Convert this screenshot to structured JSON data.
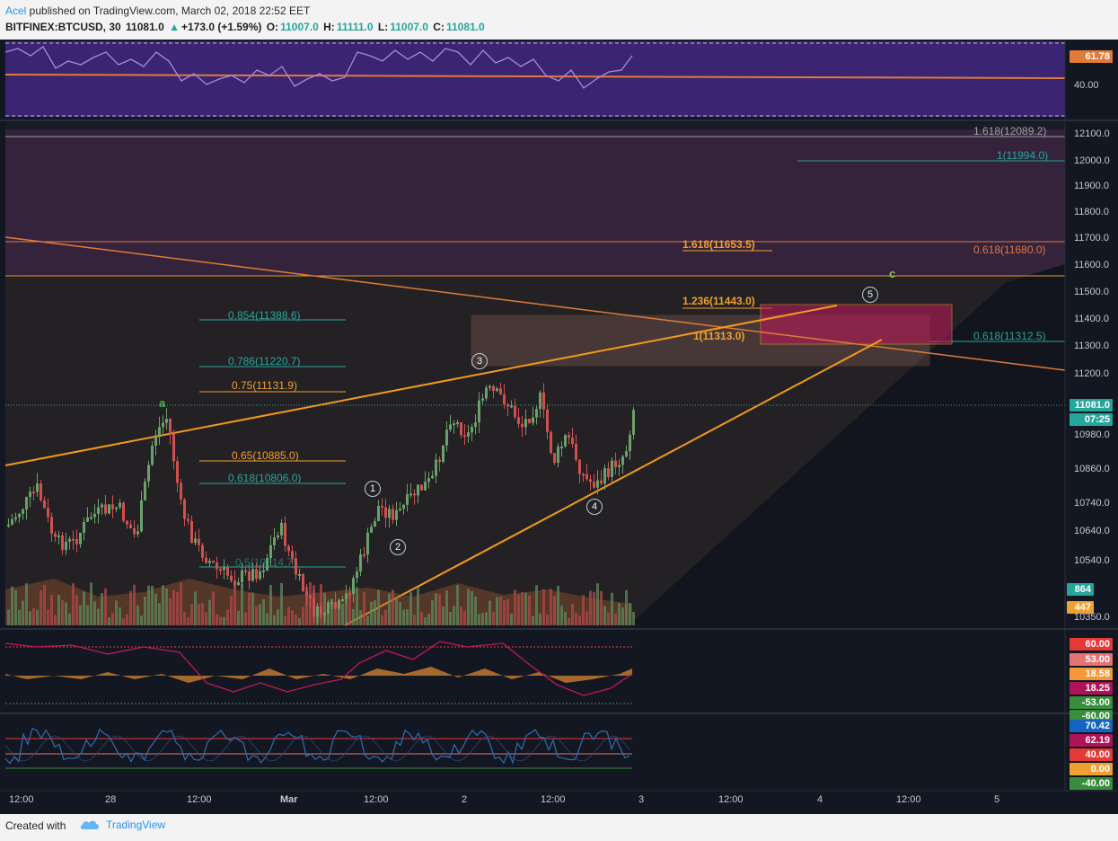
{
  "header": {
    "author": "Acel",
    "published_text": " published on TradingView.com, March 02, 2018 22:52 EET",
    "symbol": "BITFINEX:BTCUSD, 30",
    "last": "11081.0",
    "change": "+173.0 (+1.59%)",
    "open_label": "O:",
    "open": "11007.0",
    "high_label": "H:",
    "high": "11111.0",
    "low_label": "L:",
    "low": "11007.0",
    "close_label": "C:",
    "close": "11081.0"
  },
  "rsi_panel": {
    "value_tag": "61.78",
    "tick": "40.00",
    "colors": {
      "fill": "#4a2a86",
      "line": "#a88bd6",
      "mid_line": "#e07b39",
      "tag": "#e07b39"
    }
  },
  "price_axis": {
    "ticks": [
      "12100.0",
      "12000.0",
      "11900.0",
      "11800.0",
      "11700.0",
      "11600.0",
      "11500.0",
      "11400.0",
      "11300.0",
      "11200.0",
      "10980.0",
      "10860.0",
      "10740.0",
      "10640.0",
      "10540.0",
      "10350.0"
    ],
    "last_price_tag": "11081.0",
    "countdown_tag": "07:25",
    "volume_tag": "864",
    "volume_ma_tag": "447"
  },
  "fib_labels": [
    {
      "text": "1.618(12089.2)",
      "color": "#9aa0a6"
    },
    {
      "text": "1(11994.0)",
      "color": "#26a69a"
    },
    {
      "text": "1.618(11653.5)",
      "color": "#f0a030"
    },
    {
      "text": "0.618(11680.0)",
      "color": "#e0784a"
    },
    {
      "text": "1.236(11443.0)",
      "color": "#f0a030"
    },
    {
      "text": "1(11313.0)",
      "color": "#f0a030"
    },
    {
      "text": "0.618(11312.5)",
      "color": "#26a69a"
    },
    {
      "text": "0.854(11388.6)",
      "color": "#26a69a"
    },
    {
      "text": "0.786(11220.7)",
      "color": "#26a69a"
    },
    {
      "text": "0.75(11131.9)",
      "color": "#f0a030"
    },
    {
      "text": "0.65(10885.0)",
      "color": "#f0a030"
    },
    {
      "text": "0.618(10806.0)",
      "color": "#26a69a"
    },
    {
      "text": "0.5(10514.7)",
      "color": "#26a69a"
    }
  ],
  "wave_labels": [
    "a",
    "c",
    "1",
    "2",
    "3",
    "4",
    "5"
  ],
  "macd_panel": {
    "tags": [
      "60.00",
      "53.00",
      "18.58",
      "18.25",
      "-53.00",
      "-60.00"
    ],
    "tag_colors": [
      "#e53935",
      "#e57373",
      "#f29a3a",
      "#ad1457",
      "#388e3c",
      "#388e3c"
    ]
  },
  "stoch_panel": {
    "tags": [
      "70.42",
      "62.19",
      "40.00",
      "0.00",
      "-40.00"
    ],
    "tag_colors": [
      "#1565c0",
      "#ad1457",
      "#e53935",
      "#f0a030",
      "#388e3c"
    ]
  },
  "time_axis": {
    "labels": [
      "12:00",
      "28",
      "12:00",
      "Mar",
      "12:00",
      "2",
      "12:00",
      "3",
      "12:00",
      "4",
      "12:00",
      "5"
    ]
  },
  "footer": {
    "created_with": "Created with",
    "brand": "TradingView"
  }
}
